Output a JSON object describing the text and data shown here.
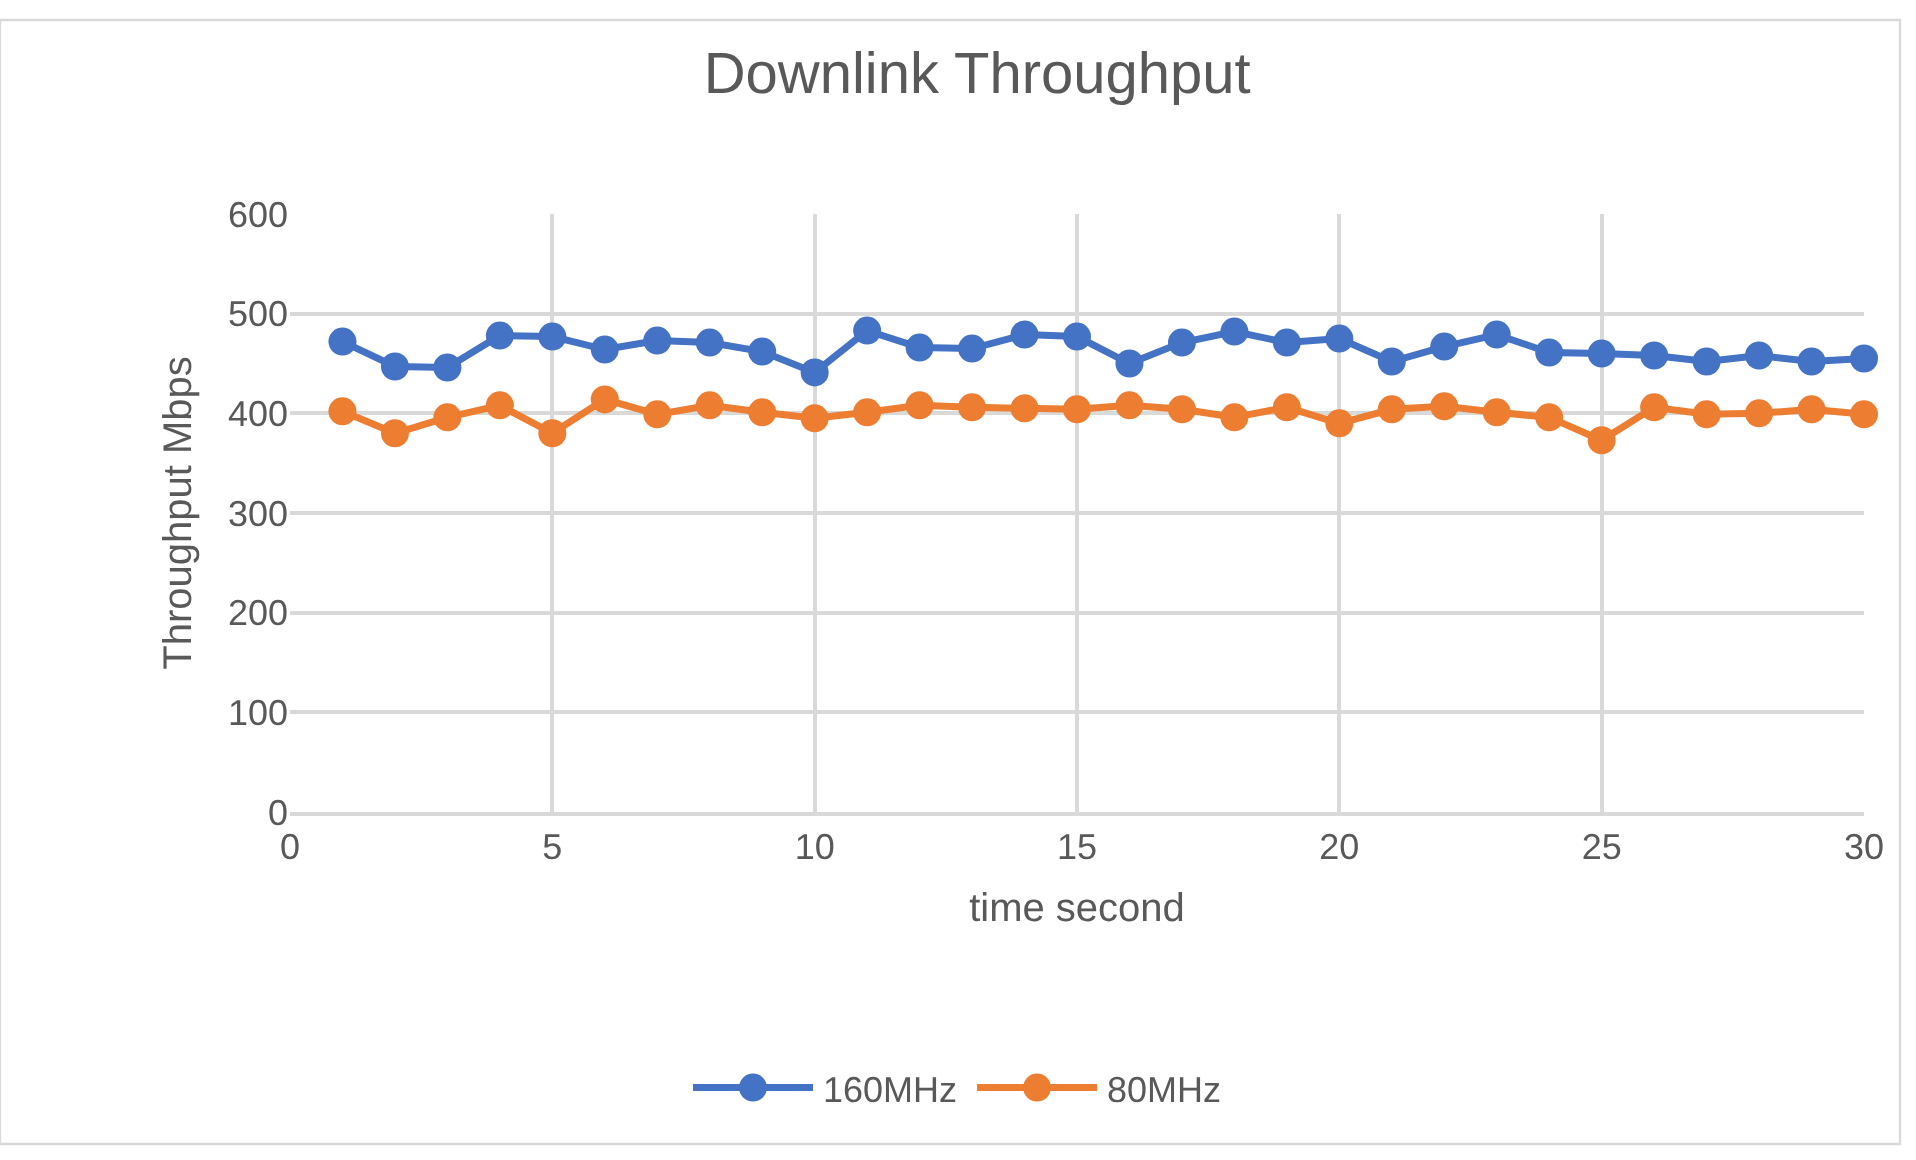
{
  "chart_data": {
    "type": "line",
    "title": "Downlink Throughput",
    "xlabel": "time second",
    "ylabel": "Throughput Mbps",
    "x": [
      1,
      2,
      3,
      4,
      5,
      6,
      7,
      8,
      9,
      10,
      11,
      12,
      13,
      14,
      15,
      16,
      17,
      18,
      19,
      20,
      21,
      22,
      23,
      24,
      25,
      26,
      27,
      28,
      29,
      30
    ],
    "series": [
      {
        "name": "160MHz",
        "color": "#4472c4",
        "values": [
          472,
          447,
          446,
          478,
          477,
          464,
          473,
          471,
          462,
          441,
          483,
          466,
          465,
          479,
          477,
          450,
          471,
          482,
          471,
          475,
          452,
          467,
          479,
          461,
          460,
          458,
          452,
          458,
          452,
          455
        ]
      },
      {
        "name": "80MHz",
        "color": "#ed7d31",
        "values": [
          402,
          380,
          396,
          408,
          380,
          414,
          399,
          408,
          401,
          395,
          401,
          408,
          406,
          405,
          404,
          408,
          404,
          396,
          406,
          390,
          404,
          407,
          401,
          396,
          373,
          406,
          399,
          400,
          404,
          399
        ]
      }
    ],
    "xlim": [
      0,
      30
    ],
    "xticks": [
      0,
      5,
      10,
      15,
      20,
      25,
      30
    ],
    "ylim": [
      0,
      600
    ],
    "yticks": [
      0,
      100,
      200,
      300,
      400,
      500,
      600
    ],
    "grid": true,
    "legend": "bottom",
    "marker": "circle",
    "line_style": "solid"
  }
}
